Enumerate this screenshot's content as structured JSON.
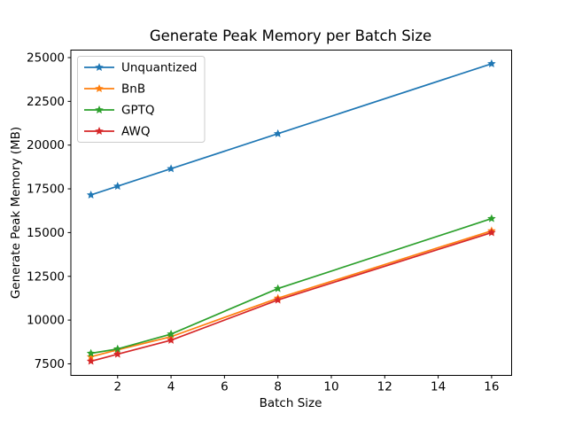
{
  "figure": {
    "background": "#ffffff",
    "spine_color": "#000000",
    "legend_border_color": "#cccccc",
    "legend_background": "#ffffff"
  },
  "chart_data": {
    "type": "line",
    "title": "Generate Peak Memory per Batch Size",
    "xlabel": "Batch Size",
    "ylabel": "Generate Peak Memory (MB)",
    "x": [
      1,
      2,
      4,
      8,
      16
    ],
    "series": [
      {
        "name": "Unquantized",
        "color": "#1f77b4",
        "values": [
          17150,
          17650,
          18650,
          20650,
          24650
        ]
      },
      {
        "name": "BnB",
        "color": "#ff7f0e",
        "values": [
          7900,
          8300,
          9050,
          11250,
          15100
        ]
      },
      {
        "name": "GPTQ",
        "color": "#2ca02c",
        "values": [
          8100,
          8350,
          9200,
          11800,
          15800
        ]
      },
      {
        "name": "AWQ",
        "color": "#d62728",
        "values": [
          7650,
          8050,
          8850,
          11150,
          15000
        ]
      }
    ],
    "marker": "star",
    "xticks": [
      2,
      4,
      6,
      8,
      10,
      12,
      14,
      16
    ],
    "yticks": [
      7500,
      10000,
      12500,
      15000,
      17500,
      20000,
      22500,
      25000
    ],
    "xlim": [
      0.25,
      16.75
    ],
    "ylim": [
      6840,
      25430
    ],
    "grid": false,
    "legend_position": "upper-left"
  }
}
